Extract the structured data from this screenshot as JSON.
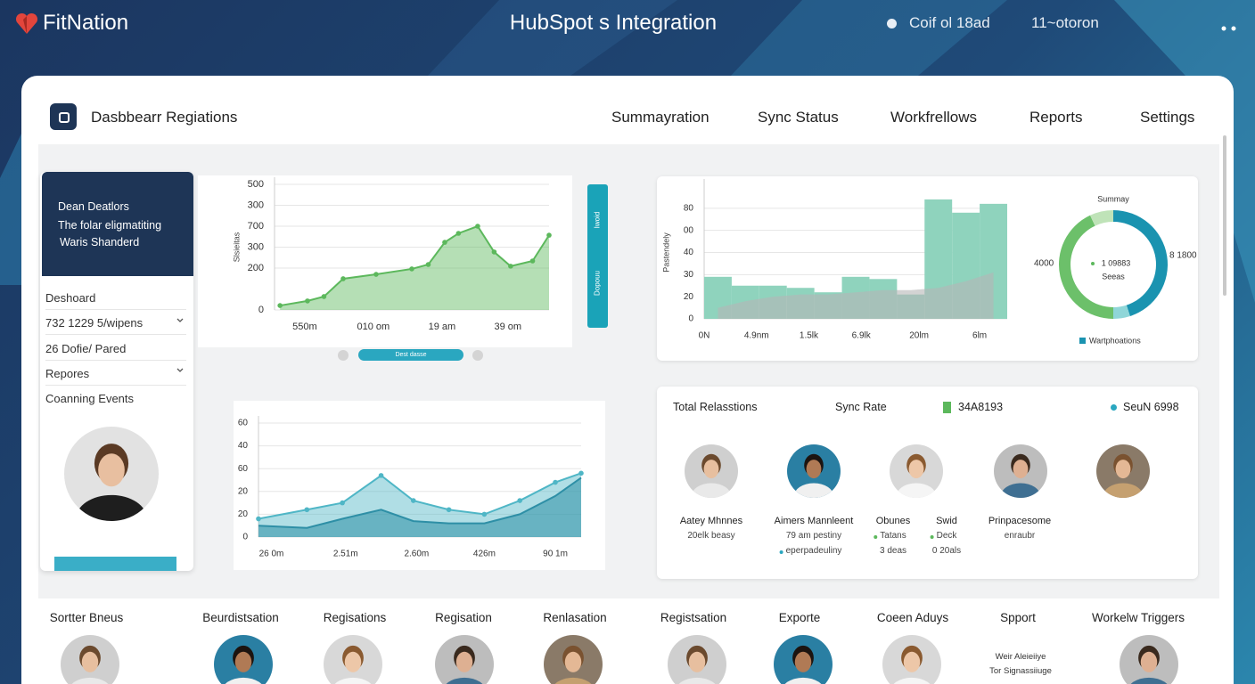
{
  "header": {
    "brand": "FitNation",
    "title": "HubSpot s Integration",
    "status": "Coif ol 18ad",
    "time": "11~otoron"
  },
  "nav": {
    "title": "Dasbbearr Regiations",
    "tabs": [
      "Summayration",
      "Sync Status",
      "Workfrellows",
      "Reports",
      "Settings"
    ]
  },
  "sidebar": {
    "profile": [
      "Dean Deatlors",
      "The folar eligmatiting",
      "Waris Shanderd"
    ],
    "menu": [
      "Deshoard",
      "732 1229 5/wipens",
      "26 Dofie/ Pared",
      "Repores",
      "Coanning Events"
    ]
  },
  "panel_labels": {
    "side_tab_top": "Iwoid",
    "side_tab": "Dopouu",
    "pager": "Dest dasse"
  },
  "chart_data": [
    {
      "type": "area",
      "y_title": "Slsieitas",
      "color": "#5cb85c",
      "grid": true,
      "x": [
        2,
        12,
        18,
        25,
        37,
        50,
        56,
        62,
        67,
        74,
        80,
        86,
        94,
        100
      ],
      "values": [
        21,
        43,
        64,
        149,
        170,
        196,
        217,
        323,
        366,
        400,
        277,
        209,
        234,
        357
      ],
      "xlim": [
        0,
        100
      ],
      "ylim": [
        0,
        600
      ],
      "yticks": [
        0,
        200,
        300,
        {
          "value": 400,
          "label": "700"
        },
        {
          "value": 500,
          "label": "300"
        },
        {
          "value": 600,
          "label": "500"
        }
      ],
      "xticks": [
        {
          "value": 11,
          "label": "550m"
        },
        {
          "value": 36,
          "label": "010 om"
        },
        {
          "value": 61,
          "label": "19 am"
        },
        {
          "value": 85,
          "label": "39 om"
        }
      ]
    },
    {
      "type": "bar",
      "y_title": "Pastendely",
      "grid": true,
      "series": [
        {
          "color": "#8fd3bd",
          "values": [
            19,
            15,
            15,
            14,
            12,
            19,
            18,
            11,
            54,
            48,
            52
          ]
        },
        {
          "color": "#b5b5b5",
          "values": [
            5,
            8,
            10,
            11,
            11,
            12,
            13,
            13,
            14,
            17,
            21
          ]
        }
      ],
      "xlim": [
        0,
        11
      ],
      "ylim": [
        0,
        60
      ],
      "yticks": [
        0,
        {
          "value": 10,
          "label": "20"
        },
        {
          "value": 20,
          "label": "30"
        },
        {
          "value": 30,
          "label": "40"
        },
        {
          "value": 40,
          "label": "00"
        },
        {
          "value": 50,
          "label": "80"
        }
      ],
      "xticks": [
        {
          "value": 0,
          "label": "0N"
        },
        {
          "value": 1.9,
          "label": "4.9nm"
        },
        {
          "value": 3.8,
          "label": "1.5lk"
        },
        {
          "value": 5.7,
          "label": "6.9lk"
        },
        {
          "value": 7.8,
          "label": "20lm"
        },
        {
          "value": 10,
          "label": "6lm"
        }
      ]
    },
    {
      "type": "donut",
      "title": "Summay",
      "center_value": "1 09883",
      "center_label": "Seeas",
      "left_label": "4000",
      "right_label": "8 1800",
      "legend": "Wartphoations",
      "values": [
        45,
        5,
        43,
        7
      ],
      "colors": [
        "#1a93b0",
        "#8fd6d8",
        "#6cc06a",
        "#bfe3b8"
      ]
    },
    {
      "type": "area",
      "grid": true,
      "x": [
        0,
        15,
        26,
        38,
        48,
        59,
        70,
        81,
        92,
        100
      ],
      "series": [
        {
          "color": "#4fb6c6",
          "values": [
            8,
            12,
            15,
            27,
            16,
            12,
            10,
            16,
            24,
            28
          ]
        },
        {
          "color": "#2e8fa6",
          "values": [
            5,
            4,
            8,
            12,
            7,
            6,
            6,
            10,
            18,
            26
          ]
        }
      ],
      "xlim": [
        0,
        100
      ],
      "ylim": [
        0,
        50
      ],
      "yticks": [
        0,
        {
          "value": 10,
          "label": "20"
        },
        20,
        {
          "value": 30,
          "label": "60"
        },
        40,
        {
          "value": 50,
          "label": "60"
        }
      ],
      "xticks": [
        {
          "value": 4,
          "label": "26 0m"
        },
        {
          "value": 27,
          "label": "2.51m"
        },
        {
          "value": 49,
          "label": "2.60m"
        },
        {
          "value": 70,
          "label": "426m"
        },
        {
          "value": 92,
          "label": "90 1m"
        }
      ]
    }
  ],
  "stats": {
    "labels": [
      "Total Relasstions",
      "Sync Rate"
    ],
    "legend": [
      "34A8193",
      "SeuN 6998"
    ],
    "people": [
      [
        "Aatey Mhnnes",
        "20elk beasy"
      ],
      [
        "Aimers Mannleent",
        "79 am pestiny",
        "eperpadeuliny"
      ],
      [
        "Obunes",
        "Tatans",
        "3 deas"
      ],
      [
        "Swid",
        "Deck",
        "0 20als"
      ],
      [
        "Prinpacesome",
        "enraubr"
      ]
    ]
  },
  "bottom": {
    "items": [
      "Sortter Bneus",
      "Beurdistsation",
      "Regisations",
      "Regisation",
      "Renlasation",
      "Registsation",
      "Exporte",
      "Coeen Aduys",
      "Spport",
      "Workelw Triggers"
    ],
    "note": [
      "Weir Aleieiiye",
      "Tor Signassiiuge"
    ]
  }
}
